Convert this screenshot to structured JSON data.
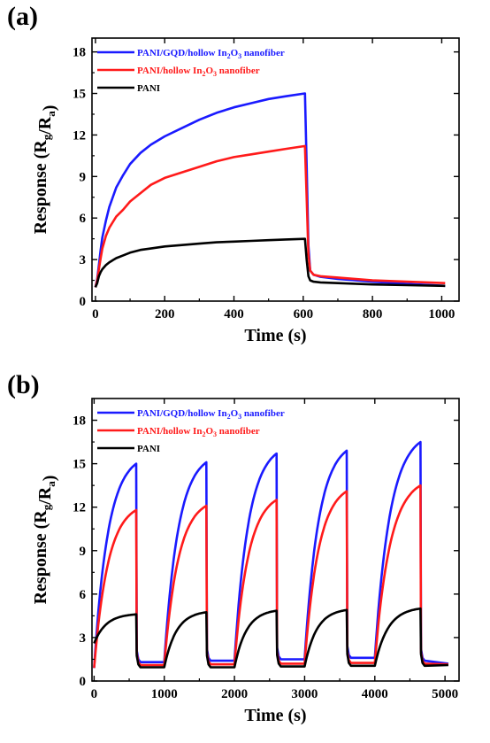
{
  "chart_data": [
    {
      "panel_label": "(a)",
      "type": "line",
      "xlabel": "Time (s)",
      "ylabel": "Response (R₉/Rₐ)",
      "ylabel_main": "Response (R",
      "ylabel_sub1": "g",
      "ylabel_mid": "/R",
      "ylabel_sub2": "a",
      "ylabel_end": ")",
      "xlim": [
        -10,
        1050
      ],
      "ylim": [
        0,
        19
      ],
      "xticks": [
        0,
        200,
        400,
        600,
        800,
        1000
      ],
      "yticks": [
        0,
        3,
        6,
        9,
        12,
        15,
        18
      ],
      "legend_position": "top-left",
      "series": [
        {
          "name": "PANI/GQD/hollow In2O3 nanofiber",
          "legend_parts": [
            "PANI/GQD/hollow In",
            "2",
            "O",
            "3",
            " nanofiber"
          ],
          "color": "#1a1aff",
          "x": [
            0,
            5,
            10,
            15,
            20,
            30,
            40,
            60,
            80,
            100,
            130,
            160,
            200,
            250,
            300,
            350,
            400,
            450,
            500,
            550,
            605,
            610,
            615,
            620,
            630,
            650,
            700,
            800,
            900,
            1010
          ],
          "y": [
            1.0,
            1.6,
            2.6,
            3.7,
            4.6,
            5.8,
            6.8,
            8.2,
            9.1,
            9.9,
            10.7,
            11.3,
            11.9,
            12.5,
            13.1,
            13.6,
            14.0,
            14.3,
            14.6,
            14.8,
            15.0,
            9.8,
            4.0,
            2.2,
            1.9,
            1.75,
            1.6,
            1.4,
            1.25,
            1.1
          ]
        },
        {
          "name": "PANI/hollow In2O3 nanofiber",
          "legend_parts": [
            "PANI/hollow In",
            "2",
            "O",
            "3",
            " nanofiber"
          ],
          "color": "#ff1a1a",
          "x": [
            0,
            5,
            10,
            15,
            20,
            30,
            40,
            60,
            80,
            100,
            130,
            160,
            200,
            250,
            300,
            350,
            400,
            450,
            500,
            550,
            605,
            610,
            615,
            620,
            630,
            650,
            700,
            800,
            900,
            1010
          ],
          "y": [
            1.0,
            1.5,
            2.3,
            3.1,
            3.8,
            4.7,
            5.3,
            6.1,
            6.6,
            7.2,
            7.8,
            8.4,
            8.9,
            9.3,
            9.7,
            10.1,
            10.4,
            10.6,
            10.8,
            11.0,
            11.2,
            7.5,
            3.4,
            2.2,
            1.9,
            1.8,
            1.7,
            1.5,
            1.4,
            1.3
          ]
        },
        {
          "name": "PANI",
          "legend_parts": [
            "PANI"
          ],
          "color": "#000000",
          "x": [
            0,
            5,
            10,
            15,
            20,
            30,
            40,
            60,
            80,
            100,
            130,
            160,
            200,
            250,
            300,
            350,
            400,
            450,
            500,
            550,
            605,
            610,
            615,
            620,
            630,
            650,
            700,
            800,
            900,
            1010
          ],
          "y": [
            1.0,
            1.3,
            1.8,
            2.1,
            2.3,
            2.6,
            2.8,
            3.1,
            3.3,
            3.5,
            3.7,
            3.8,
            3.95,
            4.05,
            4.15,
            4.25,
            4.3,
            4.35,
            4.4,
            4.45,
            4.5,
            3.0,
            1.8,
            1.5,
            1.4,
            1.35,
            1.3,
            1.2,
            1.15,
            1.1
          ]
        }
      ]
    },
    {
      "panel_label": "(b)",
      "type": "line",
      "xlabel": "Time (s)",
      "ylabel": "Response (R₉/Rₐ)",
      "ylabel_main": "Response (R",
      "ylabel_sub1": "g",
      "ylabel_mid": "/R",
      "ylabel_sub2": "a",
      "ylabel_end": ")",
      "xlim": [
        -30,
        5200
      ],
      "ylim": [
        0,
        19.5
      ],
      "xticks": [
        0,
        1000,
        2000,
        3000,
        4000,
        5000
      ],
      "yticks": [
        0,
        3,
        6,
        9,
        12,
        15,
        18
      ],
      "legend_position": "top-left",
      "cycles": [
        {
          "start": 0,
          "end": 600,
          "peaks": [
            15.0,
            11.8,
            4.6
          ],
          "base_after": [
            1.3,
            1.1,
            0.95
          ]
        },
        {
          "start": 1000,
          "end": 1600,
          "peaks": [
            15.1,
            12.1,
            4.75
          ],
          "base_after": [
            1.4,
            1.15,
            0.95
          ]
        },
        {
          "start": 2000,
          "end": 2600,
          "peaks": [
            15.7,
            12.5,
            4.85
          ],
          "base_after": [
            1.5,
            1.2,
            1.0
          ]
        },
        {
          "start": 3000,
          "end": 3600,
          "peaks": [
            15.9,
            13.1,
            4.9
          ],
          "base_after": [
            1.6,
            1.25,
            1.05
          ]
        },
        {
          "start": 4000,
          "end": 4650,
          "peaks": [
            16.5,
            13.5,
            5.0
          ],
          "base_after": [
            1.4,
            1.2,
            1.05
          ]
        }
      ],
      "cycle_starts": [
        [
          0.9,
          0.9,
          2.6
        ],
        [
          1.3,
          1.1,
          0.95
        ],
        [
          1.4,
          1.15,
          0.95
        ],
        [
          1.5,
          1.2,
          1.0
        ],
        [
          1.6,
          1.25,
          1.05
        ]
      ],
      "end_values": [
        1.2,
        1.15,
        1.1
      ],
      "end_time": 5050,
      "series": [
        {
          "name": "PANI/GQD/hollow In2O3 nanofiber",
          "legend_parts": [
            "PANI/GQD/hollow In",
            "2",
            "O",
            "3",
            " nanofiber"
          ],
          "color": "#1a1aff"
        },
        {
          "name": "PANI/hollow In2O3 nanofiber",
          "legend_parts": [
            "PANI/hollow In",
            "2",
            "O",
            "3",
            " nanofiber"
          ],
          "color": "#ff1a1a"
        },
        {
          "name": "PANI",
          "legend_parts": [
            "PANI"
          ],
          "color": "#000000"
        }
      ]
    }
  ]
}
